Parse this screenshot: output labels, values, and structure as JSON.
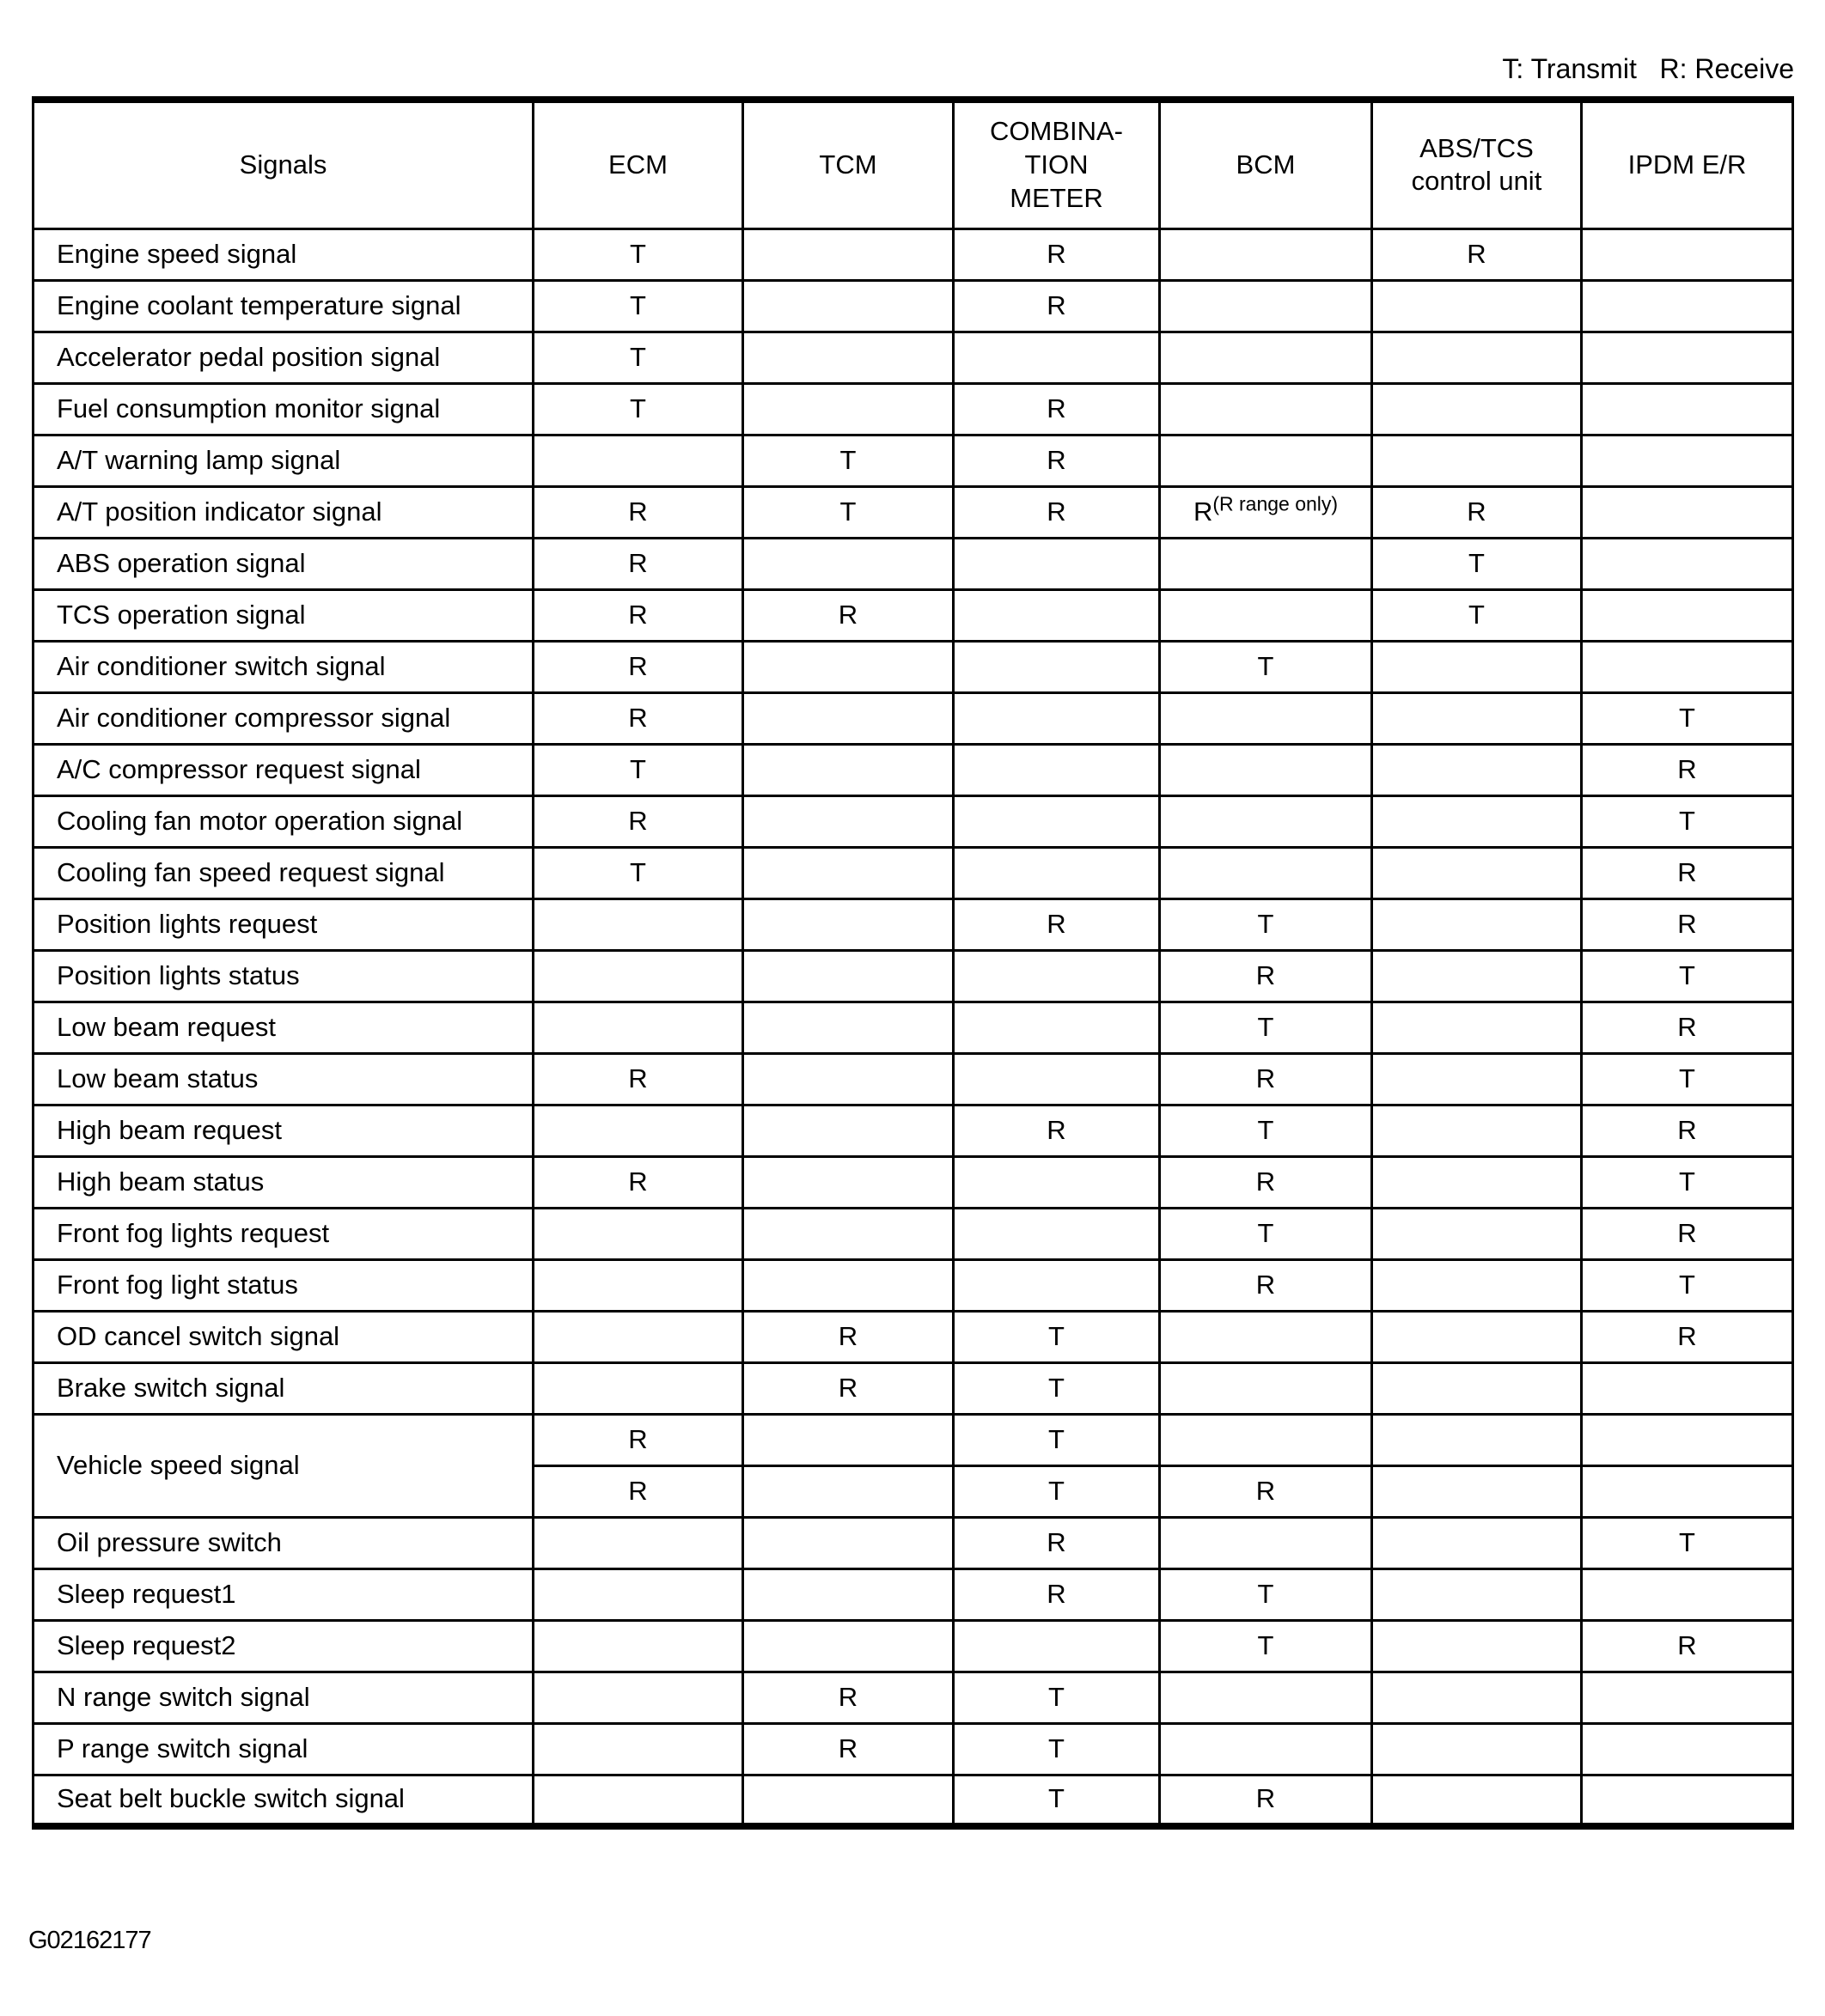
{
  "page": {
    "legend": "T: Transmit   R: Receive",
    "figure_code": "G02162177"
  },
  "table": {
    "columns": [
      {
        "id": "signals",
        "label_lines": [
          "Signals"
        ]
      },
      {
        "id": "ecm",
        "label_lines": [
          "ECM"
        ]
      },
      {
        "id": "tcm",
        "label_lines": [
          "TCM"
        ]
      },
      {
        "id": "combination-meter",
        "label_lines": [
          "COMBINA-",
          "TION",
          "METER"
        ]
      },
      {
        "id": "bcm",
        "label_lines": [
          "BCM"
        ]
      },
      {
        "id": "abs-tcs-control-unit",
        "label_lines": [
          "ABS/TCS",
          "control unit"
        ]
      },
      {
        "id": "ipdm-er",
        "label_lines": [
          "IPDM E/R"
        ]
      }
    ],
    "rows": [
      {
        "signal": "Engine speed signal",
        "cells": [
          "T",
          "",
          "R",
          "",
          "R",
          ""
        ]
      },
      {
        "signal": "Engine coolant temperature signal",
        "cells": [
          "T",
          "",
          "R",
          "",
          "",
          ""
        ]
      },
      {
        "signal": "Accelerator pedal position signal",
        "cells": [
          "T",
          "",
          "",
          "",
          "",
          ""
        ]
      },
      {
        "signal": "Fuel consumption monitor signal",
        "cells": [
          "T",
          "",
          "R",
          "",
          "",
          ""
        ]
      },
      {
        "signal": "A/T warning lamp signal",
        "cells": [
          "",
          "T",
          "R",
          "",
          "",
          ""
        ]
      },
      {
        "signal": "A/T position indicator signal",
        "cells": [
          "R",
          "T",
          "R",
          {
            "t": "R",
            "sup": "(R range only)"
          },
          "R",
          ""
        ]
      },
      {
        "signal": "ABS operation signal",
        "cells": [
          "R",
          "",
          "",
          "",
          "T",
          ""
        ]
      },
      {
        "signal": "TCS operation signal",
        "cells": [
          "R",
          "R",
          "",
          "",
          "T",
          ""
        ]
      },
      {
        "signal": "Air conditioner switch signal",
        "cells": [
          "R",
          "",
          "",
          "T",
          "",
          ""
        ]
      },
      {
        "signal": "Air conditioner compressor signal",
        "cells": [
          "R",
          "",
          "",
          "",
          "",
          "T"
        ]
      },
      {
        "signal": "A/C compressor request signal",
        "cells": [
          "T",
          "",
          "",
          "",
          "",
          "R"
        ]
      },
      {
        "signal": "Cooling fan motor operation signal",
        "cells": [
          "R",
          "",
          "",
          "",
          "",
          "T"
        ]
      },
      {
        "signal": "Cooling fan speed request signal",
        "cells": [
          "T",
          "",
          "",
          "",
          "",
          "R"
        ]
      },
      {
        "signal": "Position lights request",
        "cells": [
          "",
          "",
          "R",
          "T",
          "",
          "R"
        ]
      },
      {
        "signal": "Position lights status",
        "cells": [
          "",
          "",
          "",
          "R",
          "",
          "T"
        ]
      },
      {
        "signal": "Low beam request",
        "cells": [
          "",
          "",
          "",
          "T",
          "",
          "R"
        ]
      },
      {
        "signal": "Low beam status",
        "cells": [
          "R",
          "",
          "",
          "R",
          "",
          "T"
        ]
      },
      {
        "signal": "High beam request",
        "cells": [
          "",
          "",
          "R",
          "T",
          "",
          "R"
        ]
      },
      {
        "signal": "High beam status",
        "cells": [
          "R",
          "",
          "",
          "R",
          "",
          "T"
        ]
      },
      {
        "signal": "Front fog lights request",
        "cells": [
          "",
          "",
          "",
          "T",
          "",
          "R"
        ]
      },
      {
        "signal": "Front fog light status",
        "cells": [
          "",
          "",
          "",
          "R",
          "",
          "T"
        ]
      },
      {
        "signal": "OD cancel switch signal",
        "cells": [
          "",
          "R",
          "T",
          "",
          "",
          "R"
        ]
      },
      {
        "signal": "Brake switch signal",
        "cells": [
          "",
          "R",
          "T",
          "",
          "",
          ""
        ]
      },
      {
        "signal": "Vehicle speed signal",
        "cells": [
          "R",
          "",
          "T",
          "",
          "",
          ""
        ],
        "sub_row_cells": [
          "R",
          "",
          "T",
          "R",
          "",
          ""
        ]
      },
      {
        "signal": "Oil pressure switch",
        "cells": [
          "",
          "",
          "R",
          "",
          "",
          "T"
        ]
      },
      {
        "signal": "Sleep request1",
        "cells": [
          "",
          "",
          "R",
          "T",
          "",
          ""
        ]
      },
      {
        "signal": "Sleep request2",
        "cells": [
          "",
          "",
          "",
          "T",
          "",
          "R"
        ]
      },
      {
        "signal": "N range switch signal",
        "cells": [
          "",
          "R",
          "T",
          "",
          "",
          ""
        ]
      },
      {
        "signal": "P range switch signal",
        "cells": [
          "",
          "R",
          "T",
          "",
          "",
          ""
        ]
      },
      {
        "signal": "Seat belt buckle switch signal",
        "cells": [
          "",
          "",
          "T",
          "R",
          "",
          ""
        ]
      }
    ]
  }
}
